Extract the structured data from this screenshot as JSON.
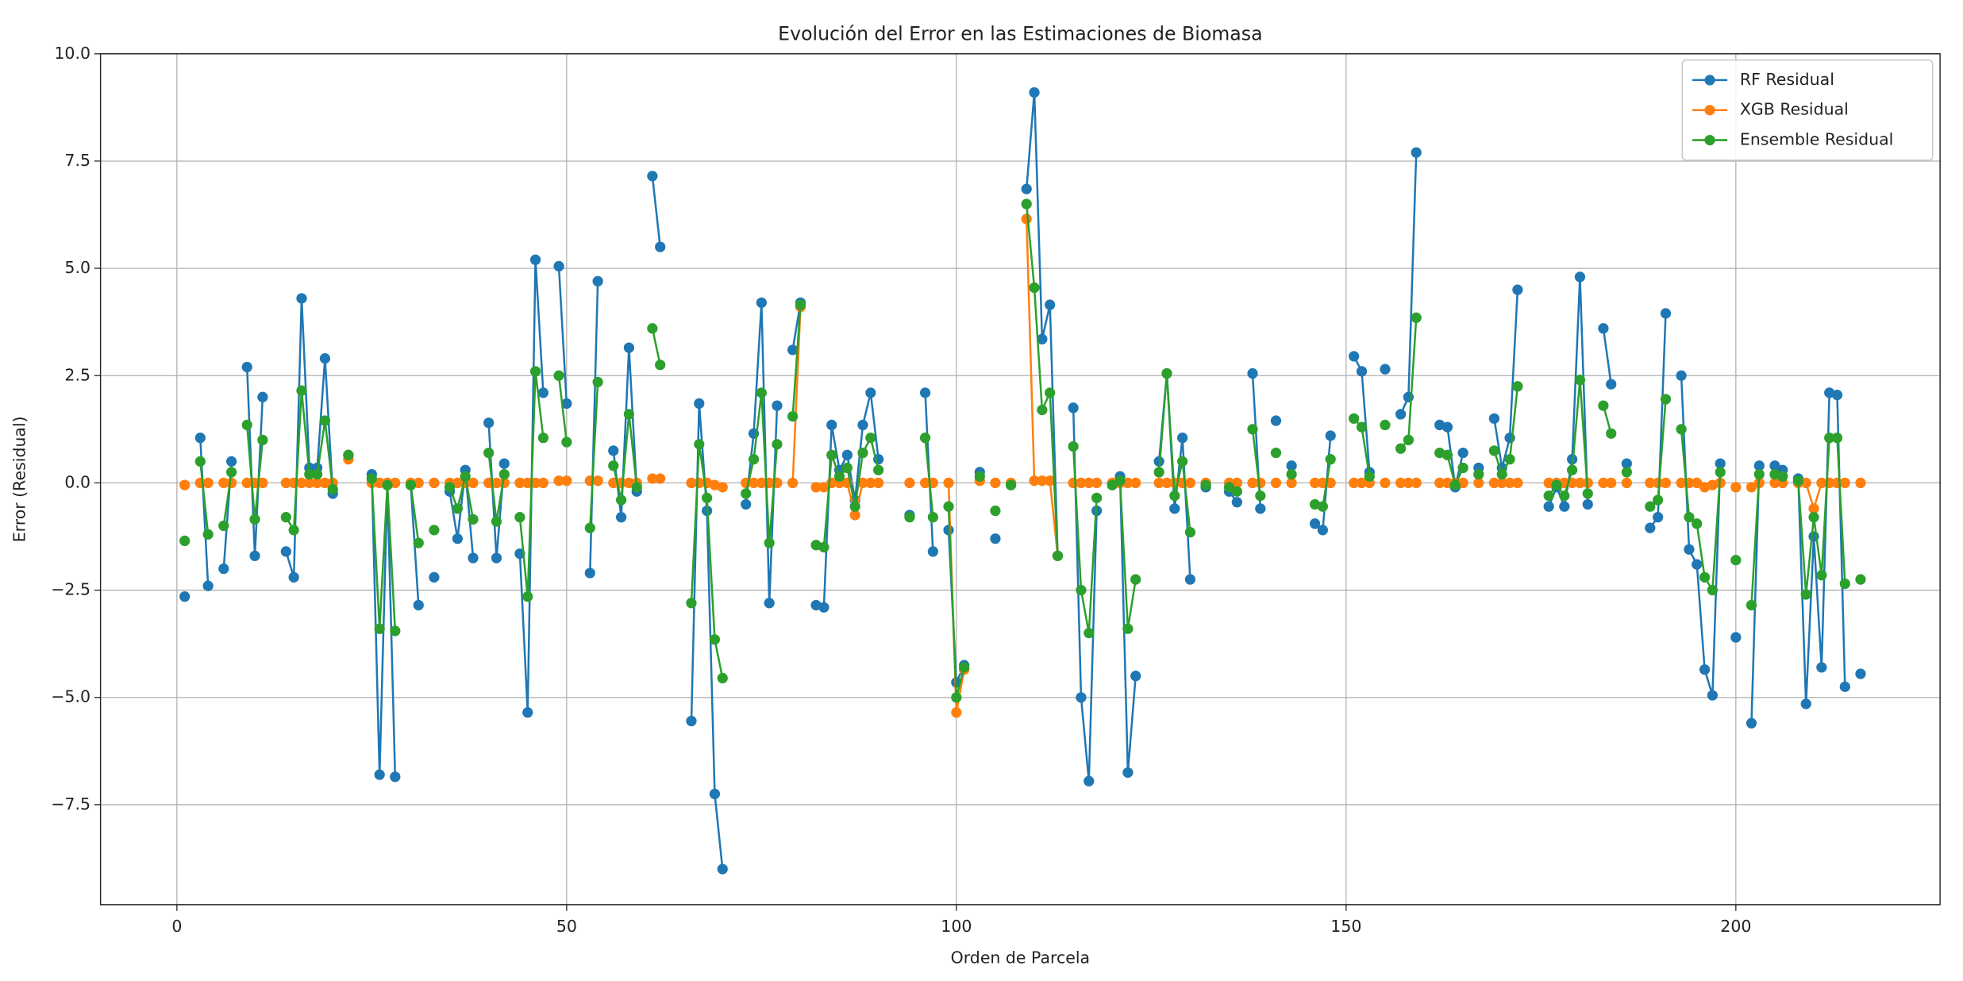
{
  "chart_data": {
    "type": "line",
    "title": "Evolución del Error en las Estimaciones de Biomasa",
    "x_label": "Orden de Parcela",
    "y_label": "Error (Residual)",
    "xlim": [
      -9.8,
      226.2
    ],
    "ylim": [
      -9.83,
      10.0
    ],
    "xticks": [
      0,
      50,
      100,
      150,
      200
    ],
    "yticks": [
      {
        "value": -7.5,
        "label": "−7.5"
      },
      {
        "value": -5.0,
        "label": "−5.0"
      },
      {
        "value": -2.5,
        "label": "−2.5"
      },
      {
        "value": 0.0,
        "label": "0.0"
      },
      {
        "value": 2.5,
        "label": "2.5"
      },
      {
        "value": 5.0,
        "label": "5.0"
      },
      {
        "value": 7.5,
        "label": "7.5"
      },
      {
        "value": 10.0,
        "label": "10.0"
      }
    ],
    "grid": true,
    "legend": "upper right",
    "x": [
      1,
      2,
      3,
      4,
      5,
      6,
      7,
      8,
      9,
      10,
      11,
      12,
      14,
      15,
      16,
      17,
      18,
      19,
      20,
      21,
      22,
      23,
      25,
      26,
      27,
      28,
      29,
      30,
      31,
      32,
      33,
      34,
      35,
      36,
      37,
      38,
      39,
      40,
      41,
      42,
      43,
      44,
      45,
      46,
      47,
      48,
      49,
      50,
      51,
      53,
      54,
      55,
      56,
      57,
      58,
      59,
      60,
      61,
      62,
      63,
      66,
      67,
      68,
      69,
      70,
      71,
      73,
      74,
      75,
      76,
      77,
      78,
      79,
      80,
      81,
      82,
      83,
      84,
      85,
      86,
      87,
      88,
      89,
      90,
      91,
      94,
      95,
      96,
      97,
      98,
      99,
      100,
      101,
      102,
      103,
      104,
      105,
      106,
      107,
      108,
      109,
      110,
      111,
      112,
      113,
      114,
      115,
      116,
      117,
      118,
      119,
      120,
      121,
      122,
      123,
      124,
      126,
      127,
      128,
      129,
      130,
      131,
      132,
      133,
      135,
      136,
      137,
      138,
      139,
      140,
      141,
      142,
      143,
      144,
      146,
      147,
      148,
      149,
      151,
      152,
      153,
      154,
      155,
      156,
      157,
      158,
      159,
      160,
      162,
      163,
      164,
      165,
      166,
      167,
      168,
      169,
      170,
      171,
      172,
      173,
      176,
      177,
      178,
      179,
      180,
      181,
      182,
      183,
      184,
      185,
      186,
      187,
      189,
      190,
      191,
      192,
      193,
      194,
      195,
      196,
      197,
      198,
      199,
      200,
      201,
      202,
      203,
      204,
      205,
      206,
      207,
      208,
      209,
      210,
      211,
      212,
      213,
      214,
      215,
      216
    ],
    "series": [
      {
        "name": "RF Residual",
        "color": "#1f77b4",
        "values": [
          -2.65,
          null,
          1.05,
          -2.4,
          null,
          -2.0,
          0.5,
          null,
          2.7,
          -1.7,
          2.0,
          null,
          -1.6,
          -2.2,
          4.3,
          0.35,
          0.35,
          2.9,
          -0.25,
          null,
          0.65,
          null,
          0.2,
          -6.8,
          -0.05,
          -6.85,
          null,
          -0.05,
          -2.85,
          null,
          -2.2,
          null,
          -0.2,
          -1.3,
          0.3,
          -1.75,
          null,
          1.4,
          -1.75,
          0.45,
          null,
          -1.65,
          -5.35,
          5.2,
          2.1,
          null,
          5.05,
          1.85,
          null,
          -2.1,
          4.7,
          null,
          0.75,
          -0.8,
          3.15,
          -0.2,
          null,
          7.15,
          5.5,
          null,
          -5.55,
          1.85,
          -0.65,
          -7.25,
          -9.0,
          null,
          -0.5,
          1.15,
          4.2,
          -2.8,
          1.8,
          null,
          3.1,
          4.2,
          null,
          -2.85,
          -2.9,
          1.35,
          0.3,
          0.65,
          -0.4,
          1.35,
          2.1,
          0.55,
          null,
          -0.75,
          null,
          2.1,
          -1.6,
          null,
          -1.1,
          -4.65,
          -4.25,
          null,
          0.25,
          null,
          -1.3,
          null,
          -0.05,
          null,
          6.85,
          9.1,
          3.35,
          4.15,
          -1.7,
          null,
          1.75,
          -5.0,
          -6.95,
          -0.65,
          null,
          -0.05,
          0.15,
          -6.75,
          -4.5,
          null,
          0.5,
          2.55,
          -0.6,
          1.05,
          -2.25,
          null,
          -0.1,
          null,
          -0.2,
          -0.45,
          null,
          2.55,
          -0.6,
          null,
          1.45,
          null,
          0.4,
          null,
          -0.95,
          -1.1,
          1.1,
          null,
          2.95,
          2.6,
          0.25,
          null,
          2.65,
          null,
          1.6,
          2.0,
          7.7,
          null,
          1.35,
          1.3,
          -0.1,
          0.7,
          null,
          0.35,
          null,
          1.5,
          0.35,
          1.05,
          4.5,
          null,
          -0.55,
          -0.1,
          -0.55,
          0.55,
          4.8,
          -0.5,
          null,
          3.6,
          2.3,
          null,
          0.45,
          null,
          -1.05,
          -0.8,
          3.95,
          null,
          2.5,
          -1.55,
          -1.9,
          -4.35,
          -4.95,
          0.45,
          null,
          -3.6,
          null,
          -5.6,
          0.4,
          null,
          0.4,
          0.3,
          null,
          0.1,
          -5.15,
          -1.25,
          -4.3,
          2.1,
          2.05,
          -4.75,
          null,
          -4.45
        ]
      },
      {
        "name": "XGB Residual",
        "color": "#ff7f0e",
        "values": [
          -0.05,
          null,
          0,
          0,
          null,
          0,
          0,
          null,
          0,
          0,
          0,
          null,
          0,
          0,
          0,
          0,
          0,
          0,
          0,
          null,
          0.55,
          null,
          0,
          0,
          0,
          0,
          null,
          0,
          0,
          null,
          0,
          null,
          0,
          0,
          0,
          0,
          null,
          0,
          0,
          0,
          null,
          0,
          0,
          0,
          0,
          null,
          0.05,
          0.05,
          null,
          0.05,
          0.05,
          null,
          0,
          0,
          0,
          0,
          null,
          0.1,
          0.1,
          null,
          0,
          0,
          0,
          -0.05,
          -0.1,
          null,
          0,
          0,
          0,
          0,
          0,
          null,
          0,
          4.1,
          null,
          -0.1,
          -0.1,
          0,
          0,
          0,
          -0.75,
          0,
          0,
          0,
          null,
          0,
          null,
          0,
          0,
          null,
          0,
          -5.35,
          -4.35,
          null,
          0.05,
          null,
          0,
          null,
          0,
          null,
          6.15,
          0.05,
          0.05,
          0.05,
          -1.7,
          null,
          0,
          0,
          0,
          0,
          null,
          0,
          0,
          0,
          0,
          null,
          0,
          0,
          0,
          0,
          0,
          null,
          0,
          null,
          0,
          0,
          null,
          0,
          0,
          null,
          0,
          null,
          0,
          null,
          0,
          0,
          0,
          null,
          0,
          0,
          0,
          null,
          0,
          null,
          0,
          0,
          0,
          null,
          0,
          0,
          0,
          0,
          null,
          0,
          null,
          0,
          0,
          0,
          0,
          null,
          0,
          0,
          0,
          0,
          0,
          0,
          null,
          0,
          0,
          null,
          0,
          null,
          0,
          0,
          0,
          null,
          0,
          0,
          0,
          -0.1,
          -0.05,
          0,
          null,
          -0.1,
          null,
          -0.1,
          0,
          null,
          0,
          0,
          null,
          0,
          0,
          -0.6,
          0,
          0,
          0,
          0,
          null,
          0
        ]
      },
      {
        "name": "Ensemble Residual",
        "color": "#2ca02c",
        "values": [
          -1.35,
          null,
          0.5,
          -1.2,
          null,
          -1.0,
          0.25,
          null,
          1.35,
          -0.85,
          1.0,
          null,
          -0.8,
          -1.1,
          2.15,
          0.2,
          0.2,
          1.45,
          -0.15,
          null,
          0.65,
          null,
          0.1,
          -3.4,
          -0.05,
          -3.45,
          null,
          -0.05,
          -1.4,
          null,
          -1.1,
          null,
          -0.1,
          -0.6,
          0.15,
          -0.85,
          null,
          0.7,
          -0.9,
          0.2,
          null,
          -0.8,
          -2.65,
          2.6,
          1.05,
          null,
          2.5,
          0.95,
          null,
          -1.05,
          2.35,
          null,
          0.4,
          -0.4,
          1.6,
          -0.1,
          null,
          3.6,
          2.75,
          null,
          -2.8,
          0.9,
          -0.35,
          -3.65,
          -4.55,
          null,
          -0.25,
          0.55,
          2.1,
          -1.4,
          0.9,
          null,
          1.55,
          4.15,
          null,
          -1.45,
          -1.5,
          0.65,
          0.15,
          0.35,
          -0.55,
          0.7,
          1.05,
          0.3,
          null,
          -0.8,
          null,
          1.05,
          -0.8,
          null,
          -0.55,
          -5.0,
          -4.3,
          null,
          0.15,
          null,
          -0.65,
          null,
          -0.05,
          null,
          6.5,
          4.55,
          1.7,
          2.1,
          -1.7,
          null,
          0.85,
          -2.5,
          -3.5,
          -0.35,
          null,
          -0.05,
          0.05,
          -3.4,
          -2.25,
          null,
          0.25,
          2.55,
          -0.3,
          0.5,
          -1.15,
          null,
          -0.05,
          null,
          -0.1,
          -0.2,
          null,
          1.25,
          -0.3,
          null,
          0.7,
          null,
          0.2,
          null,
          -0.5,
          -0.55,
          0.55,
          null,
          1.5,
          1.3,
          0.15,
          null,
          1.35,
          null,
          0.8,
          1.0,
          3.85,
          null,
          0.7,
          0.65,
          -0.05,
          0.35,
          null,
          0.2,
          null,
          0.75,
          0.2,
          0.55,
          2.25,
          null,
          -0.3,
          -0.05,
          -0.3,
          0.3,
          2.4,
          -0.25,
          null,
          1.8,
          1.15,
          null,
          0.25,
          null,
          -0.55,
          -0.4,
          1.95,
          null,
          1.25,
          -0.8,
          -0.95,
          -2.2,
          -2.5,
          0.25,
          null,
          -1.8,
          null,
          -2.85,
          0.2,
          null,
          0.2,
          0.15,
          null,
          0.05,
          -2.6,
          -0.8,
          -2.15,
          1.05,
          1.05,
          -2.35,
          null,
          -2.25
        ]
      }
    ]
  }
}
